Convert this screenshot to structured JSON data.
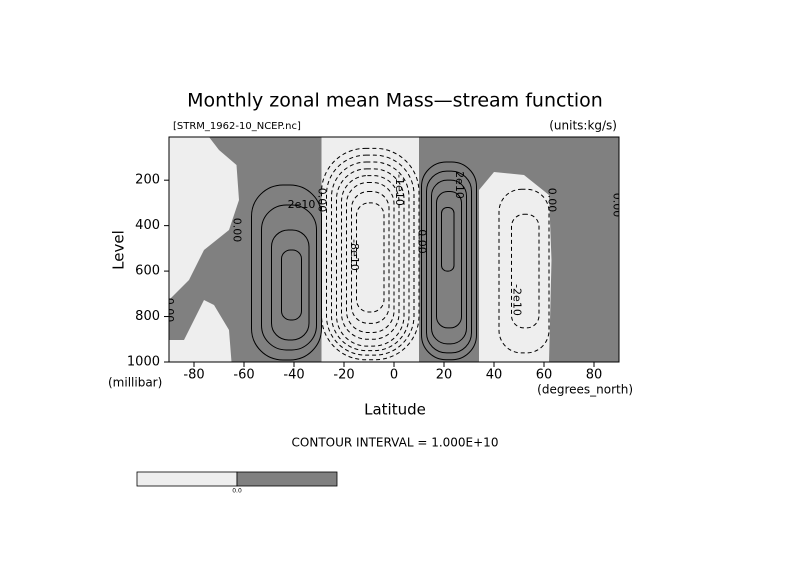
{
  "chart_data": {
    "type": "contour",
    "title": "Monthly zonal mean Mass—stream function",
    "subtitle": "[STRM_1962-10_NCEP.nc]",
    "units": "(units:kg/s)",
    "xlabel": "Latitude",
    "xunit": "(degrees_north)",
    "ylabel": "Level",
    "yunit": "(millibar)",
    "footer": "CONTOUR INTERVAL = 1.000E+10",
    "xlim": [
      -90,
      90
    ],
    "ylim": [
      1000,
      10
    ],
    "xticks": [
      -80,
      -60,
      -40,
      -20,
      0,
      20,
      40,
      60,
      80
    ],
    "yticks": [
      200,
      400,
      600,
      800,
      1000
    ],
    "background_color": "#eeeeee",
    "shade_color": "#808080",
    "shaded_regions": [
      {
        "min": 0,
        "polygon": [
          [
            -74,
            10
          ],
          [
            -29,
            10
          ],
          [
            -29,
            1000
          ],
          [
            -65,
            1000
          ],
          [
            -66,
            859
          ],
          [
            -72,
            749
          ],
          [
            -76,
            727
          ],
          [
            -80,
            815
          ],
          [
            -84,
            903
          ],
          [
            -90,
            903
          ],
          [
            -90,
            727
          ],
          [
            -82,
            639
          ],
          [
            -76,
            507
          ],
          [
            -66,
            419
          ],
          [
            -62,
            287
          ],
          [
            -63,
            133
          ],
          [
            -70,
            67
          ]
        ]
      },
      {
        "min": 0,
        "polygon": [
          [
            10,
            10
          ],
          [
            90,
            10
          ],
          [
            90,
            1000
          ],
          [
            62,
            1000
          ],
          [
            63,
            551
          ],
          [
            62,
            265
          ],
          [
            52,
            177
          ],
          [
            40,
            164
          ],
          [
            34,
            243
          ],
          [
            34,
            1000
          ],
          [
            10,
            1000
          ],
          [
            10,
            507
          ]
        ]
      }
    ],
    "contours": [
      {
        "level": 10000000000,
        "lat": [
          -57,
          -29
        ],
        "lev": [
          221,
          991
        ]
      },
      {
        "level": 20000000000,
        "lat": [
          -53,
          -31
        ],
        "lev": [
          309,
          947
        ]
      },
      {
        "level": 30000000000,
        "lat": [
          -49,
          -34
        ],
        "lev": [
          419,
          903
        ]
      },
      {
        "level": 40000000000,
        "lat": [
          -45,
          -37
        ],
        "lev": [
          507,
          815
        ]
      },
      {
        "level": -10000000000,
        "lat": [
          -29,
          10
        ],
        "lev": [
          60,
          990
        ]
      },
      {
        "level": -20000000000,
        "lat": [
          -27,
          8
        ],
        "lev": [
          90,
          970
        ]
      },
      {
        "level": -30000000000,
        "lat": [
          -25,
          6
        ],
        "lev": [
          120,
          950
        ]
      },
      {
        "level": -40000000000,
        "lat": [
          -23,
          4
        ],
        "lev": [
          150,
          930
        ]
      },
      {
        "level": -50000000000,
        "lat": [
          -21,
          2
        ],
        "lev": [
          180,
          900
        ]
      },
      {
        "level": -60000000000,
        "lat": [
          -19,
          0
        ],
        "lev": [
          210,
          870
        ]
      },
      {
        "level": -70000000000,
        "lat": [
          -17,
          -2
        ],
        "lev": [
          250,
          830
        ]
      },
      {
        "level": -80000000000,
        "lat": [
          -15,
          -4
        ],
        "lev": [
          300,
          780
        ]
      },
      {
        "level": 10000000000,
        "lat": [
          11,
          33
        ],
        "lev": [
          120,
          990
        ]
      },
      {
        "level": 20000000000,
        "lat": [
          13,
          31
        ],
        "lev": [
          160,
          960
        ]
      },
      {
        "level": 30000000000,
        "lat": [
          15,
          29
        ],
        "lev": [
          200,
          920
        ]
      },
      {
        "level": 40000000000,
        "lat": [
          17,
          27
        ],
        "lev": [
          250,
          850
        ]
      },
      {
        "level": 50000000000,
        "lat": [
          19,
          24
        ],
        "lev": [
          320,
          600
        ]
      },
      {
        "level": -10000000000,
        "lat": [
          42,
          62
        ],
        "lev": [
          240,
          960
        ]
      },
      {
        "level": -20000000000,
        "lat": [
          47,
          58
        ],
        "lev": [
          350,
          850
        ]
      }
    ],
    "contour_labels": [
      {
        "text": "2e10",
        "lat": -37,
        "lev": 309,
        "rotated": false
      },
      {
        "text": "0.00",
        "lat": -63,
        "lev": 419,
        "rotated": true
      },
      {
        "text": "0.00",
        "lat": -29,
        "lev": 287,
        "rotated": true
      },
      {
        "text": "-8e10",
        "lat": -16,
        "lev": 529,
        "rotated": true
      },
      {
        "text": "-1e10",
        "lat": 2,
        "lev": 243,
        "rotated": true
      },
      {
        "text": "0.00",
        "lat": 11,
        "lev": 470,
        "rotated": true
      },
      {
        "text": "2e10",
        "lat": 26,
        "lev": 221,
        "rotated": true
      },
      {
        "text": "0.00",
        "lat": 63,
        "lev": 287,
        "rotated": true
      },
      {
        "text": "-2e10",
        "lat": 49,
        "lev": 727,
        "rotated": true
      },
      {
        "text": "0.00",
        "lat": 89,
        "lev": 309,
        "rotated": true
      },
      {
        "text": "0.00",
        "lat": -90,
        "lev": 771,
        "rotated": true
      }
    ],
    "colorbar": {
      "colors": [
        "#eeeeee",
        "#808080"
      ],
      "label": "0.0"
    }
  }
}
